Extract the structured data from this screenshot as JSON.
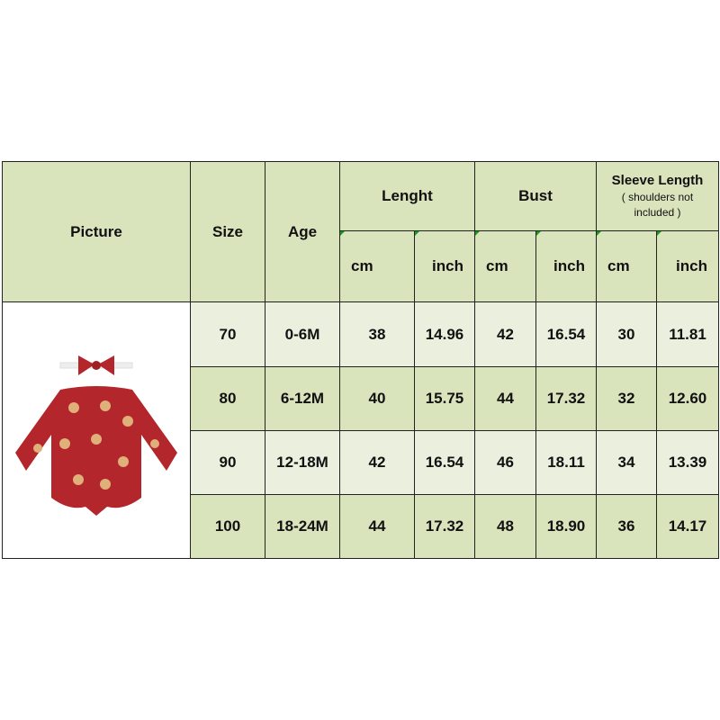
{
  "header": {
    "picture": "Picture",
    "size": "Size",
    "age": "Age",
    "length": "Lenght",
    "bust": "Bust",
    "sleeve": "Sleeve Length",
    "sleeve_note": "( shoulders not included )",
    "cm": "cm",
    "inch": "inch"
  },
  "rows": [
    [
      "70",
      "0-6M",
      "38",
      "14.96",
      "42",
      "16.54",
      "30",
      "11.81"
    ],
    [
      "80",
      "6-12M",
      "40",
      "15.75",
      "44",
      "17.32",
      "32",
      "12.60"
    ],
    [
      "90",
      "12-18M",
      "42",
      "16.54",
      "46",
      "18.11",
      "34",
      "13.39"
    ],
    [
      "100",
      "18-24M",
      "44",
      "17.32",
      "48",
      "18.90",
      "36",
      "14.17"
    ]
  ],
  "colors": {
    "header": "#d9e4bd",
    "row_light": "#ebf0de",
    "row_dark": "#d9e4bd",
    "product": "#b3262b"
  }
}
